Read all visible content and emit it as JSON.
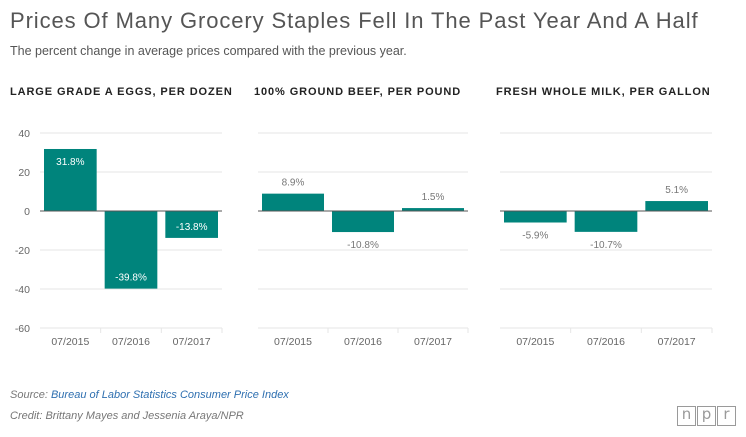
{
  "header": {
    "title": "Prices Of Many Grocery Staples Fell In The Past Year And A Half",
    "subtitle": "The percent change in average prices compared with the previous year."
  },
  "colors": {
    "bar": "#00847c",
    "grid": "#e6e6e6",
    "zero_line": "#555555",
    "axis_text": "#666666"
  },
  "chart_data": [
    {
      "type": "bar",
      "title": "LARGE GRADE A EGGS, PER DOZEN",
      "categories": [
        "07/2015",
        "07/2016",
        "07/2017"
      ],
      "values": [
        31.8,
        -39.8,
        -13.8
      ],
      "labels": [
        "31.8%",
        "-39.8%",
        "-13.8%"
      ],
      "ylim": [
        -60,
        40
      ],
      "yticks": [
        40,
        20,
        0,
        -20,
        -40,
        -60
      ],
      "ytick_labels": [
        "40",
        "20",
        "0",
        "-20",
        "-40",
        "-60"
      ],
      "grid": true
    },
    {
      "type": "bar",
      "title": "100% GROUND BEEF, PER POUND",
      "categories": [
        "07/2015",
        "07/2016",
        "07/2017"
      ],
      "values": [
        8.9,
        -10.8,
        1.5
      ],
      "labels": [
        "8.9%",
        "-10.8%",
        "1.5%"
      ],
      "ylim": [
        -60,
        40
      ],
      "grid": true
    },
    {
      "type": "bar",
      "title": "FRESH WHOLE MILK, PER GALLON",
      "categories": [
        "07/2015",
        "07/2016",
        "07/2017"
      ],
      "values": [
        -5.9,
        -10.7,
        5.1
      ],
      "labels": [
        "-5.9%",
        "-10.7%",
        "5.1%"
      ],
      "ylim": [
        -60,
        40
      ],
      "grid": true
    }
  ],
  "footer": {
    "source_prefix": "Source: ",
    "source_link": "Bureau of Labor Statistics Consumer Price Index",
    "credit": "Credit: Brittany Mayes and Jessenia Araya/NPR"
  },
  "logo": {
    "letters": [
      "n",
      "p",
      "r"
    ]
  }
}
